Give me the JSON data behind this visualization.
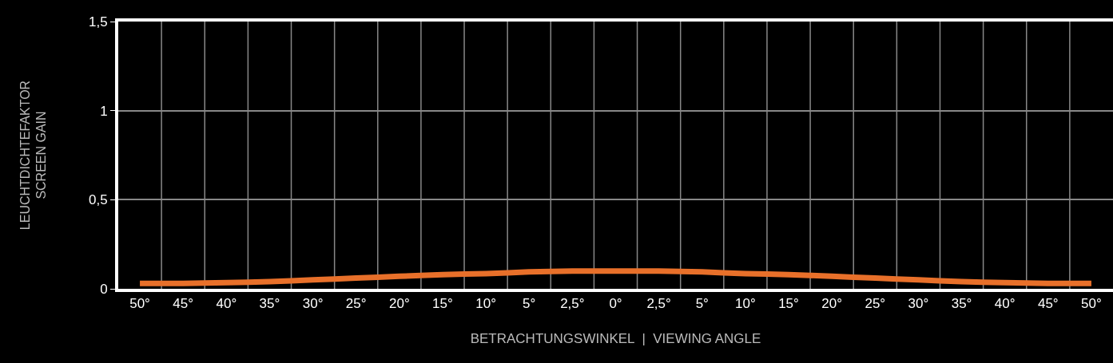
{
  "chart_data": {
    "type": "line",
    "xlabel": "BETRACHTUNGSWINKEL  |  VIEWING ANGLE",
    "ylabel": "LEUCHTDICHTEFAKTOR\nSCREEN GAIN",
    "categories": [
      "50°",
      "45°",
      "40°",
      "35°",
      "30°",
      "25°",
      "20°",
      "15°",
      "10°",
      "5°",
      "2,5°",
      "0°",
      "2,5°",
      "5°",
      "10°",
      "15°",
      "20°",
      "25°",
      "30°",
      "35°",
      "40°",
      "45°",
      "50°"
    ],
    "series": [
      {
        "color": "#e8702a",
        "values": [
          0.03,
          0.03,
          0.035,
          0.04,
          0.05,
          0.06,
          0.07,
          0.08,
          0.085,
          0.095,
          0.1,
          0.1,
          0.1,
          0.095,
          0.085,
          0.08,
          0.07,
          0.06,
          0.05,
          0.04,
          0.035,
          0.03,
          0.03
        ]
      }
    ],
    "ylim": [
      0,
      1.5
    ],
    "yticks": [
      0,
      {
        "value": 0.5,
        "label": "0,5"
      },
      1,
      {
        "value": 1.5,
        "label": "1,5"
      }
    ],
    "grid": true,
    "marker": "none",
    "line_style": "solid"
  }
}
